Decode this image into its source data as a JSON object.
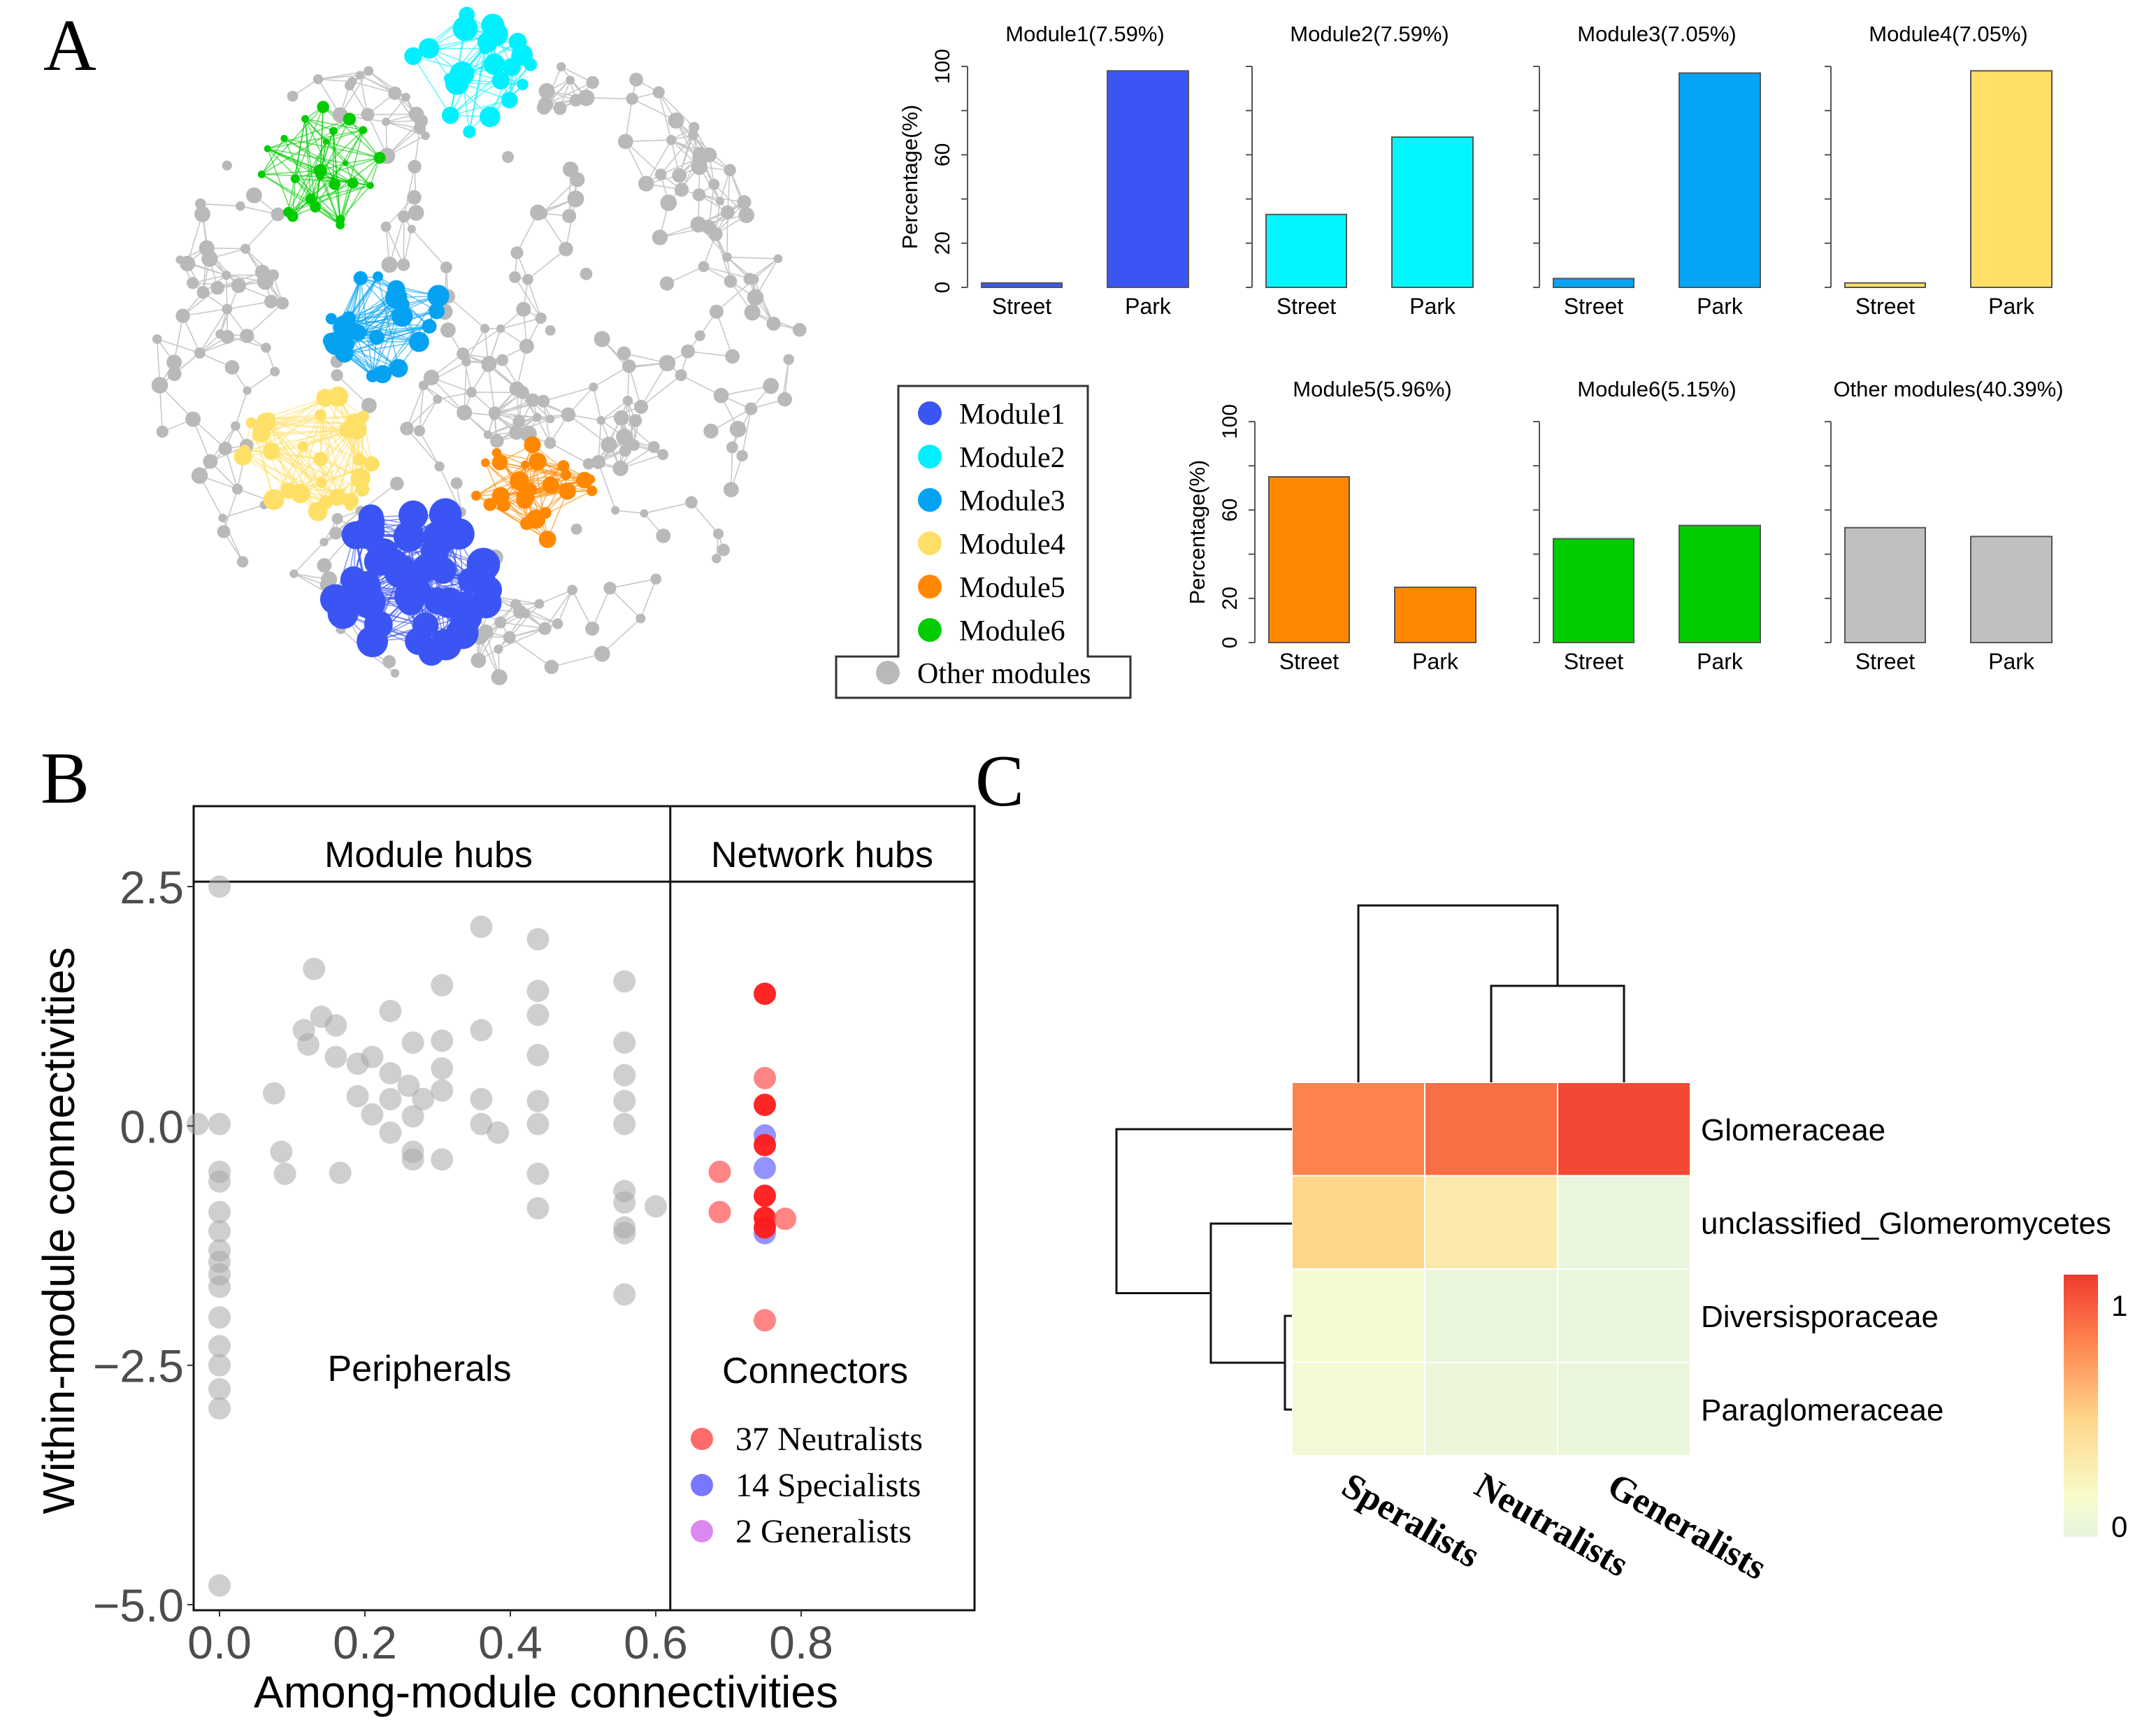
{
  "panel_labels": {
    "a": "A",
    "b": "B",
    "c": "C"
  },
  "network": {
    "modules": [
      {
        "name": "Module1",
        "color": "#3b55f5"
      },
      {
        "name": "Module2",
        "color": "#00f0ff"
      },
      {
        "name": "Module3",
        "color": "#05a2f2"
      },
      {
        "name": "Module4",
        "color": "#ffe066"
      },
      {
        "name": "Module5",
        "color": "#ff8800"
      },
      {
        "name": "Module6",
        "color": "#00cc00"
      }
    ],
    "other_color": "#b9b9b9",
    "legend": [
      "Module1",
      "Module2",
      "Module3",
      "Module4",
      "Module5",
      "Module6",
      "Other modules"
    ]
  },
  "chart_data": [
    {
      "type": "bar",
      "ylabel": "Percentage(%)",
      "yticks": [
        "0",
        "20",
        "60",
        "100"
      ],
      "ylim": [
        0,
        100
      ],
      "categories": [
        "Street",
        "Park"
      ],
      "panels": [
        {
          "title": "Module1(7.59%)",
          "values": [
            2,
            98
          ],
          "color": "#3b55f5"
        },
        {
          "title": "Module2(7.59%)",
          "values": [
            33,
            68
          ],
          "color": "#00f7ff"
        },
        {
          "title": "Module3(7.05%)",
          "values": [
            4,
            97
          ],
          "color": "#05a5f5"
        },
        {
          "title": "Module4(7.05%)",
          "values": [
            2,
            98
          ],
          "color": "#ffe066"
        },
        {
          "title": "Module5(5.96%)",
          "values": [
            75,
            25
          ],
          "color": "#ff8800"
        },
        {
          "title": "Module6(5.15%)",
          "values": [
            47,
            53
          ],
          "color": "#00cc00"
        },
        {
          "title": "Other modules(40.39%)",
          "values": [
            52,
            48
          ],
          "color": "#c0c0c0"
        }
      ]
    },
    {
      "type": "scatter",
      "xlabel": "Among-module connectivities",
      "ylabel": "Within-module connectivities",
      "xticks": [
        "0.0",
        "0.2",
        "0.4",
        "0.6",
        "0.8"
      ],
      "yticks": [
        "2.5",
        "0.0",
        "−2.5",
        "−5.0"
      ],
      "xlim": [
        -0.04,
        1.0
      ],
      "ylim": [
        -5.0,
        2.5
      ],
      "thresholds": {
        "x": 0.62,
        "y": 2.5
      },
      "regions": {
        "module_hubs": "Module hubs",
        "network_hubs": "Network hubs",
        "peripherals": "Peripherals",
        "connectors": "Connectors"
      },
      "legend": [
        {
          "label": "37 Neutralists",
          "color": "#ff6b6b"
        },
        {
          "label": "14 Specialists",
          "color": "#7777ff"
        },
        {
          "label": "2 Generalists",
          "color": "#dd88f0"
        }
      ],
      "other_points": [
        [
          0,
          2.5
        ],
        [
          -0.03,
          0.02
        ],
        [
          0,
          0.02
        ],
        [
          0,
          -0.48
        ],
        [
          0,
          -0.58
        ],
        [
          0,
          -0.9
        ],
        [
          0,
          -1.1
        ],
        [
          0,
          -1.3
        ],
        [
          0,
          -1.42
        ],
        [
          0,
          -1.55
        ],
        [
          0,
          -1.68
        ],
        [
          0,
          -2.0
        ],
        [
          0,
          -2.3
        ],
        [
          0,
          -2.5
        ],
        [
          0,
          -2.75
        ],
        [
          0,
          -2.95
        ],
        [
          0,
          -4.8
        ],
        [
          0.075,
          0.34
        ],
        [
          0.085,
          -0.27
        ],
        [
          0.09,
          -0.5
        ],
        [
          0.13,
          1.64
        ],
        [
          0.116,
          1.0
        ],
        [
          0.122,
          0.85
        ],
        [
          0.14,
          1.14
        ],
        [
          0.16,
          1.05
        ],
        [
          0.16,
          0.72
        ],
        [
          0.166,
          -0.49
        ],
        [
          0.19,
          0.65
        ],
        [
          0.19,
          0.31
        ],
        [
          0.21,
          0.72
        ],
        [
          0.21,
          0.12
        ],
        [
          0.235,
          1.2
        ],
        [
          0.235,
          0.55
        ],
        [
          0.235,
          0.28
        ],
        [
          0.235,
          -0.07
        ],
        [
          0.26,
          0.42
        ],
        [
          0.266,
          0.87
        ],
        [
          0.266,
          0.1
        ],
        [
          0.266,
          -0.27
        ],
        [
          0.266,
          -0.35
        ],
        [
          0.28,
          0.28
        ],
        [
          0.306,
          1.47
        ],
        [
          0.306,
          0.89
        ],
        [
          0.306,
          0.6
        ],
        [
          0.306,
          0.37
        ],
        [
          0.306,
          -0.35
        ],
        [
          0.36,
          2.08
        ],
        [
          0.36,
          1.0
        ],
        [
          0.36,
          0.28
        ],
        [
          0.36,
          0.02
        ],
        [
          0.383,
          -0.07
        ],
        [
          0.438,
          1.95
        ],
        [
          0.438,
          1.41
        ],
        [
          0.438,
          1.16
        ],
        [
          0.438,
          0.74
        ],
        [
          0.438,
          0.26
        ],
        [
          0.438,
          0.02
        ],
        [
          0.438,
          -0.5
        ],
        [
          0.438,
          -0.86
        ],
        [
          0.557,
          1.51
        ],
        [
          0.557,
          0.87
        ],
        [
          0.557,
          0.53
        ],
        [
          0.557,
          0.26
        ],
        [
          0.557,
          0.02
        ],
        [
          0.557,
          -0.68
        ],
        [
          0.557,
          -0.8
        ],
        [
          0.557,
          -1.06
        ],
        [
          0.557,
          -1.12
        ],
        [
          0.557,
          -1.76
        ],
        [
          0.6,
          -0.84
        ]
      ],
      "connector_points": [
        {
          "x": 0.75,
          "y": 1.38,
          "group": "Neutralists",
          "strong": true
        },
        {
          "x": 0.75,
          "y": 0.5,
          "group": "Neutralists",
          "strong": false
        },
        {
          "x": 0.75,
          "y": 0.22,
          "group": "Neutralists",
          "strong": true
        },
        {
          "x": 0.75,
          "y": -0.1,
          "group": "Specialists",
          "strong": false
        },
        {
          "x": 0.75,
          "y": -0.2,
          "group": "Neutralists",
          "strong": true
        },
        {
          "x": 0.75,
          "y": -0.44,
          "group": "Specialists",
          "strong": false
        },
        {
          "x": 0.688,
          "y": -0.48,
          "group": "Neutralists",
          "strong": false
        },
        {
          "x": 0.75,
          "y": -0.73,
          "group": "Neutralists",
          "strong": true
        },
        {
          "x": 0.688,
          "y": -0.9,
          "group": "Neutralists",
          "strong": false
        },
        {
          "x": 0.75,
          "y": -0.96,
          "group": "Neutralists",
          "strong": true
        },
        {
          "x": 0.75,
          "y": -1.12,
          "group": "Specialists",
          "strong": false
        },
        {
          "x": 0.75,
          "y": -1.06,
          "group": "Neutralists",
          "strong": true
        },
        {
          "x": 0.778,
          "y": -0.97,
          "group": "Neutralists",
          "strong": false
        },
        {
          "x": 0.75,
          "y": -2.03,
          "group": "Neutralists",
          "strong": false
        }
      ]
    },
    {
      "type": "heatmap",
      "rows": [
        "Glomeraceae",
        "unclassified_Glomeromycetes",
        "Diversisporaceae",
        "Paraglomeraceae"
      ],
      "columns": [
        "Speralists",
        "Neutralists",
        "Generalists"
      ],
      "values": [
        [
          0.75,
          0.82,
          0.95
        ],
        [
          0.45,
          0.3,
          0.02
        ],
        [
          0.12,
          0.03,
          0.02
        ],
        [
          0.1,
          0.05,
          0.03
        ]
      ],
      "colorbar": {
        "min_label": "0",
        "max_label": "1",
        "range": [
          0,
          1
        ]
      }
    }
  ]
}
